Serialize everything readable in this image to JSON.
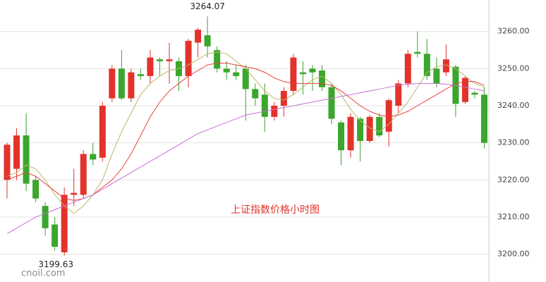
{
  "chart_data": {
    "type": "candlestick",
    "title": "上证指数价格小时图",
    "watermark": "cnoil.com",
    "up_color": "#e3322b",
    "down_color": "#3aa62c",
    "open": [
      3220,
      3223,
      3232,
      3220,
      3213,
      3208,
      3200.5,
      3216,
      3216,
      3227,
      3226,
      3242,
      3250,
      3242,
      3248.5,
      3248,
      3252.5,
      3252,
      3252,
      3248,
      3257,
      3259,
      3255,
      3250,
      3249,
      3250,
      3244.5,
      3243,
      3237,
      3240,
      3244,
      3249,
      3250,
      3249.5,
      3245,
      3235.5,
      3228,
      3236.5,
      3230.5,
      3237,
      3233,
      3240,
      3246,
      3254.5,
      3254,
      3250,
      3249,
      3250.5,
      3241,
      3243.5,
      3243
    ],
    "high": [
      3230,
      3234,
      3238,
      3221,
      3214,
      3210,
      3218,
      3223,
      3228,
      3230,
      3241,
      3251,
      3255,
      3250,
      3250,
      3255,
      3253,
      3257,
      3253,
      3258,
      3261,
      3264.07,
      3256,
      3252,
      3251,
      3251,
      3246,
      3246,
      3241,
      3245,
      3254,
      3252,
      3251,
      3251,
      3246,
      3236,
      3238,
      3237,
      3237.5,
      3238,
      3242,
      3247,
      3255,
      3260,
      3258,
      3253,
      3256.5,
      3251,
      3248,
      3244,
      3245
    ],
    "low": [
      3215,
      3220,
      3217,
      3214,
      3205,
      3201,
      3199.63,
      3213,
      3215,
      3224,
      3225,
      3241,
      3241.5,
      3241,
      3247,
      3246,
      3248,
      3246,
      3244,
      3245,
      3253,
      3253,
      3249,
      3247,
      3247,
      3236,
      3240,
      3233,
      3236,
      3237,
      3243,
      3243,
      3244,
      3244,
      3235,
      3224,
      3226,
      3225,
      3230,
      3231.5,
      3229,
      3238,
      3245,
      3253,
      3247,
      3245,
      3248,
      3237,
      3240.5,
      3242,
      3228.5
    ],
    "close": [
      3229.5,
      3232,
      3219,
      3215,
      3207,
      3202,
      3216,
      3216.5,
      3227,
      3225.5,
      3240,
      3250,
      3242,
      3249,
      3248,
      3253,
      3252,
      3252.5,
      3248,
      3257.5,
      3260.5,
      3256,
      3250,
      3249,
      3248,
      3244.5,
      3242,
      3237,
      3240,
      3244,
      3253,
      3248.5,
      3249,
      3245,
      3236.5,
      3228,
      3237,
      3230.5,
      3237,
      3232,
      3241.5,
      3246,
      3254,
      3254,
      3248,
      3246,
      3252.5,
      3240.5,
      3247.5,
      3243,
      3230
    ],
    "lines": [
      {
        "color": "#bdb56a",
        "values": [
          3221,
          3222,
          3224,
          3223,
          3220,
          3216,
          3213,
          3211,
          3213,
          3216,
          3220,
          3227,
          3233,
          3238,
          3243,
          3246,
          3248,
          3249.5,
          3250,
          3251,
          3252.5,
          3254,
          3254.5,
          3254,
          3252,
          3250,
          3247,
          3244,
          3242,
          3241.5,
          3243,
          3245,
          3247,
          3248,
          3246,
          3243,
          3239,
          3236,
          3234,
          3233,
          3235,
          3238,
          3241,
          3245,
          3249,
          3250.5,
          3251,
          3250,
          3248,
          3246,
          3245
        ]
      },
      {
        "color": "#e8413c",
        "values": [
          3220,
          3221,
          3222,
          3221,
          3219,
          3217,
          3215,
          3214.5,
          3215,
          3216,
          3218,
          3220,
          3223,
          3227,
          3232,
          3237,
          3241,
          3244,
          3246,
          3248,
          3249.5,
          3251,
          3251.5,
          3251.5,
          3251,
          3250.5,
          3250,
          3249,
          3247.5,
          3246.5,
          3246,
          3246,
          3246,
          3246,
          3245.5,
          3244,
          3242,
          3240,
          3238.5,
          3237.5,
          3237,
          3237.5,
          3238.5,
          3240,
          3241.5,
          3243,
          3244.5,
          3246,
          3246.5,
          3246.5,
          3245.5
        ]
      },
      {
        "color": "#c672d4",
        "values": [
          3205.5,
          3207,
          3208.5,
          3210,
          3211,
          3212,
          3213,
          3214,
          3215,
          3216,
          3217.5,
          3219,
          3220.5,
          3222,
          3223.5,
          3225,
          3226.5,
          3228,
          3229.5,
          3231,
          3232.5,
          3233.5,
          3234.5,
          3235.5,
          3236.5,
          3237.5,
          3238,
          3238.5,
          3239,
          3239.5,
          3240,
          3240.5,
          3241,
          3241.5,
          3242,
          3242.5,
          3243,
          3243.5,
          3244,
          3244.5,
          3245,
          3245.5,
          3245.8,
          3246,
          3246,
          3246,
          3245.8,
          3245.5,
          3245,
          3244.5,
          3244
        ]
      }
    ],
    "max_label": "3264.07",
    "min_label": "3199.63",
    "ylim": [
      3192.5,
      3268.5
    ],
    "yticks": [
      {
        "value": 3200,
        "label": "3200.00"
      },
      {
        "value": 3210,
        "label": "3210.00"
      },
      {
        "value": 3220,
        "label": "3220.00"
      },
      {
        "value": 3230,
        "label": "3230.00"
      },
      {
        "value": 3240,
        "label": "3240.00"
      },
      {
        "value": 3250,
        "label": "3250.00"
      },
      {
        "value": 3260,
        "label": "3260.00"
      }
    ],
    "grid": true
  }
}
